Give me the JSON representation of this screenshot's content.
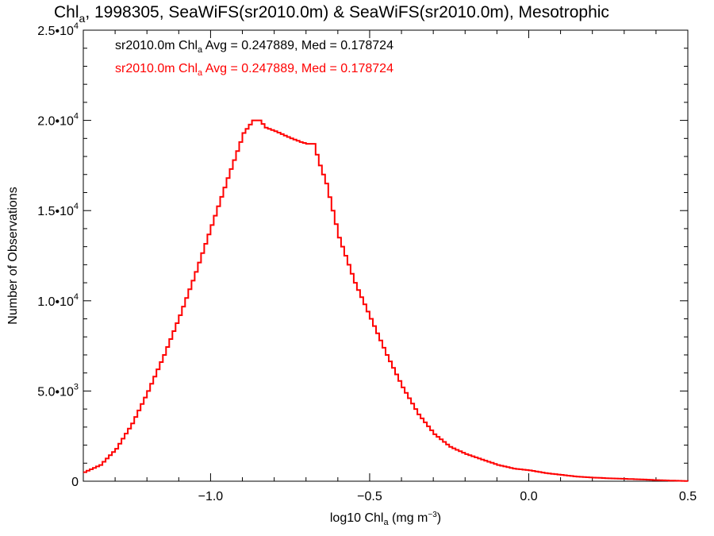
{
  "title": {
    "prefix": "Chl",
    "prefix_sub": "a",
    "rest": ", 1998305, SeaWiFS(sr2010.0m) & SeaWiFS(sr2010.0m), Mesotrophic"
  },
  "x_axis": {
    "label_prefix": "log10 Chl",
    "label_sub": "a",
    "label_units": " (mg m",
    "label_units_sup": "−3",
    "label_close": ")"
  },
  "y_axis": {
    "label": "Number of Observations"
  },
  "legend": {
    "position": "top-left",
    "entries": [
      {
        "prefix": "sr2010.0m Chl",
        "sub": "a",
        "text": " Avg = 0.247889, Med = 0.178724",
        "color": "#000000"
      },
      {
        "prefix": "sr2010.0m Chl",
        "sub": "a",
        "text": " Avg = 0.247889, Med = 0.178724",
        "color": "#ff0000"
      }
    ]
  },
  "colors": {
    "series": "#ff0000",
    "axes": "#000000",
    "background": "#ffffff"
  },
  "chart_data": {
    "type": "line",
    "xlim": [
      -1.4,
      0.5
    ],
    "ylim": [
      0,
      25000
    ],
    "x_ticks": [
      {
        "value": -1.0,
        "label": "−1.0"
      },
      {
        "value": -0.5,
        "label": "−0.5"
      },
      {
        "value": 0.0,
        "label": "0.0"
      },
      {
        "value": 0.5,
        "label": "0.5"
      }
    ],
    "y_ticks": [
      {
        "value": 0,
        "mantissa": "0",
        "exponent": ""
      },
      {
        "value": 5000,
        "mantissa": "5.0•10",
        "exponent": "3"
      },
      {
        "value": 10000,
        "mantissa": "1.0•10",
        "exponent": "4"
      },
      {
        "value": 15000,
        "mantissa": "1.5•10",
        "exponent": "4"
      },
      {
        "value": 20000,
        "mantissa": "2.0•10",
        "exponent": "4"
      },
      {
        "value": 25000,
        "mantissa": "2.5•10",
        "exponent": "4"
      }
    ],
    "grid": false,
    "series": [
      {
        "color": "#ff0000",
        "step": true,
        "x": [
          -1.4,
          -1.35,
          -1.3,
          -1.25,
          -1.2,
          -1.15,
          -1.1,
          -1.05,
          -1.0,
          -0.95,
          -0.9,
          -0.87,
          -0.85,
          -0.83,
          -0.8,
          -0.75,
          -0.72,
          -0.7,
          -0.68,
          -0.66,
          -0.64,
          -0.62,
          -0.6,
          -0.55,
          -0.5,
          -0.45,
          -0.4,
          -0.35,
          -0.3,
          -0.25,
          -0.2,
          -0.15,
          -0.1,
          -0.05,
          0.0,
          0.05,
          0.1,
          0.15,
          0.2,
          0.25,
          0.3,
          0.35,
          0.4,
          0.45,
          0.5
        ],
        "values": [
          500,
          900,
          1800,
          3200,
          5000,
          7000,
          9200,
          11600,
          14200,
          16800,
          19300,
          20000,
          20000,
          19600,
          19400,
          19000,
          18800,
          18700,
          18700,
          17500,
          16500,
          15000,
          13500,
          11000,
          9000,
          7000,
          5200,
          3700,
          2600,
          1900,
          1500,
          1200,
          900,
          700,
          600,
          450,
          350,
          250,
          200,
          160,
          130,
          100,
          60,
          30,
          10
        ]
      }
    ]
  }
}
